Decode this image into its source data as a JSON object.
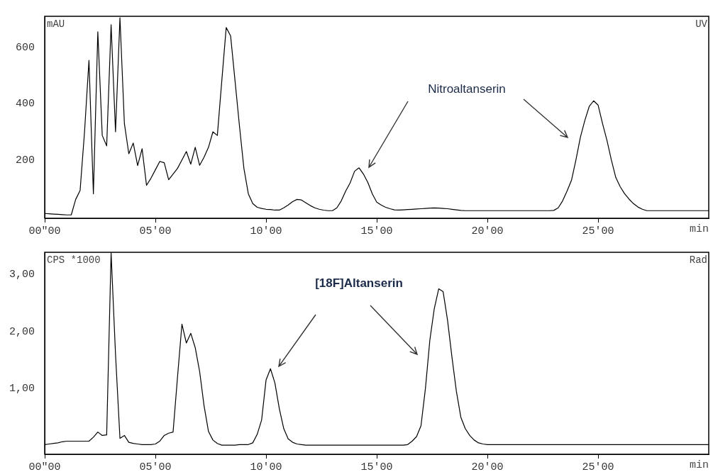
{
  "chart_data": [
    {
      "type": "line",
      "ylabel": "mAU",
      "xlabel": "min",
      "annotations": [
        "UV",
        "Nitroaltanserin"
      ],
      "line_style": "solid",
      "categories": [
        "00\"00",
        null,
        null,
        null,
        null,
        null,
        null,
        null,
        null,
        null,
        null,
        null,
        null,
        null,
        null,
        null,
        null,
        null,
        null,
        null,
        null,
        null,
        null,
        null,
        null,
        "05'00",
        null,
        null,
        null,
        null,
        null,
        null,
        null,
        null,
        null,
        null,
        null,
        null,
        null,
        null,
        null,
        null,
        null,
        null,
        null,
        null,
        null,
        null,
        null,
        null,
        "10'00",
        null,
        null,
        null,
        null,
        null,
        null,
        null,
        null,
        null,
        null,
        null,
        null,
        null,
        null,
        null,
        null,
        null,
        null,
        null,
        null,
        null,
        null,
        null,
        null,
        "15'00",
        null,
        null,
        null,
        null,
        null,
        null,
        null,
        null,
        null,
        null,
        null,
        null,
        null,
        null,
        null,
        null,
        null,
        null,
        null,
        null,
        null,
        null,
        null,
        null,
        "20'00",
        null,
        null,
        null,
        null,
        null,
        null,
        null,
        null,
        null,
        null,
        null,
        null,
        null,
        null,
        null,
        null,
        null,
        null,
        null,
        null,
        null,
        null,
        null,
        null,
        "25'00",
        null,
        null,
        null,
        null,
        null,
        null,
        null,
        null,
        null,
        null,
        null,
        null,
        null,
        null,
        null,
        null,
        null,
        null,
        null,
        null,
        null,
        null,
        null,
        null,
        null
      ],
      "series": [
        {
          "color": "#000000",
          "values": [
            10,
            9,
            8,
            7,
            6,
            5,
            5,
            60,
            92,
            300,
            554,
            80,
            655,
            287,
            250,
            680,
            300,
            705,
            330,
            222,
            260,
            180,
            240,
            110,
            135,
            165,
            195,
            190,
            130,
            150,
            170,
            200,
            230,
            185,
            245,
            181,
            210,
            245,
            300,
            287,
            480,
            670,
            640,
            480,
            320,
            170,
            80,
            45,
            32,
            28,
            25,
            24,
            22,
            22,
            30,
            40,
            52,
            60,
            58,
            48,
            38,
            30,
            25,
            22,
            20,
            20,
            30,
            55,
            90,
            119,
            160,
            172,
            150,
            120,
            80,
            50,
            40,
            32,
            27,
            23,
            22,
            23,
            24,
            25,
            26,
            27,
            28,
            29,
            30,
            29,
            28,
            27,
            25,
            23,
            21,
            20,
            20,
            20,
            20,
            20,
            20,
            20,
            20,
            20,
            20,
            20,
            20,
            20,
            20,
            20,
            20,
            20,
            20,
            20,
            20,
            21,
            30,
            55,
            90,
            128,
            200,
            280,
            340,
            390,
            410,
            395,
            330,
            270,
            200,
            138,
            105,
            80,
            61,
            45,
            33,
            25,
            20,
            20,
            20,
            20,
            20,
            20,
            20,
            20,
            20,
            20,
            20,
            20,
            20,
            20,
            20
          ]
        }
      ],
      "ylim": [
        -7,
        710
      ],
      "yticks": [
        200,
        400,
        600
      ]
    },
    {
      "type": "line",
      "ylabel": "CPS *1000",
      "xlabel": "min",
      "annotations": [
        "Rad",
        "[18F]Altanserin"
      ],
      "line_style": "solid",
      "categories": [
        "00\"00",
        null,
        null,
        null,
        null,
        null,
        null,
        null,
        null,
        null,
        null,
        null,
        null,
        null,
        null,
        null,
        null,
        null,
        null,
        null,
        null,
        null,
        null,
        null,
        null,
        "05'00",
        null,
        null,
        null,
        null,
        null,
        null,
        null,
        null,
        null,
        null,
        null,
        null,
        null,
        null,
        null,
        null,
        null,
        null,
        null,
        null,
        null,
        null,
        null,
        null,
        "10'00",
        null,
        null,
        null,
        null,
        null,
        null,
        null,
        null,
        null,
        null,
        null,
        null,
        null,
        null,
        null,
        null,
        null,
        null,
        null,
        null,
        null,
        null,
        null,
        null,
        "15'00",
        null,
        null,
        null,
        null,
        null,
        null,
        null,
        null,
        null,
        null,
        null,
        null,
        null,
        null,
        null,
        null,
        null,
        null,
        null,
        null,
        null,
        null,
        null,
        null,
        "20'00",
        null,
        null,
        null,
        null,
        null,
        null,
        null,
        null,
        null,
        null,
        null,
        null,
        null,
        null,
        null,
        null,
        null,
        null,
        null,
        null,
        null,
        null,
        null,
        null,
        "25'00",
        null,
        null,
        null,
        null,
        null,
        null,
        null,
        null,
        null,
        null,
        null,
        null,
        null,
        null,
        null,
        null,
        null,
        null,
        null,
        null,
        null,
        null,
        null,
        null,
        null
      ],
      "series": [
        {
          "color": "#000000",
          "values": [
            0.02,
            0.03,
            0.04,
            0.05,
            0.07,
            0.08,
            0.08,
            0.08,
            0.08,
            0.08,
            0.08,
            0.15,
            0.24,
            0.18,
            0.19,
            3.38,
            1.6,
            0.13,
            0.18,
            0.06,
            0.04,
            0.03,
            0.02,
            0.02,
            0.02,
            0.03,
            0.08,
            0.18,
            0.22,
            0.24,
            1.2,
            2.13,
            1.8,
            1.97,
            1.72,
            1.3,
            0.7,
            0.25,
            0.1,
            0.04,
            0.01,
            0.01,
            0.01,
            0.01,
            0.02,
            0.02,
            0.02,
            0.05,
            0.2,
            0.45,
            1.15,
            1.35,
            1.1,
            0.65,
            0.3,
            0.12,
            0.06,
            0.03,
            0.02,
            0.01,
            0.01,
            0.01,
            0.01,
            0.01,
            0.01,
            0.01,
            0.01,
            0.01,
            0.01,
            0.01,
            0.01,
            0.01,
            0.01,
            0.01,
            0.01,
            0.01,
            0.01,
            0.01,
            0.01,
            0.01,
            0.01,
            0.01,
            0.02,
            0.08,
            0.16,
            0.35,
            1.0,
            1.85,
            2.4,
            2.75,
            2.7,
            2.2,
            1.55,
            0.95,
            0.5,
            0.3,
            0.18,
            0.1,
            0.05,
            0.03,
            0.02,
            0.02,
            0.02,
            0.02,
            0.02,
            0.02,
            0.02,
            0.02,
            0.02,
            0.02,
            0.02,
            0.02,
            0.02,
            0.02,
            0.02,
            0.02,
            0.02,
            0.02,
            0.02,
            0.02,
            0.02,
            0.02,
            0.02,
            0.02,
            0.02,
            0.02,
            0.02,
            0.02,
            0.02,
            0.02,
            0.02,
            0.02,
            0.02,
            0.02,
            0.02,
            0.02,
            0.02,
            0.02,
            0.02,
            0.02,
            0.02,
            0.02,
            0.02,
            0.02,
            0.02,
            0.02,
            0.02,
            0.02,
            0.02,
            0.02,
            0.02
          ]
        }
      ],
      "ylim": [
        -0.15,
        3.39
      ],
      "yticks": [
        {
          "value": 1,
          "label": "1,00"
        },
        {
          "value": 2,
          "label": "2,00"
        },
        {
          "value": 3,
          "label": "3,00"
        }
      ]
    }
  ]
}
